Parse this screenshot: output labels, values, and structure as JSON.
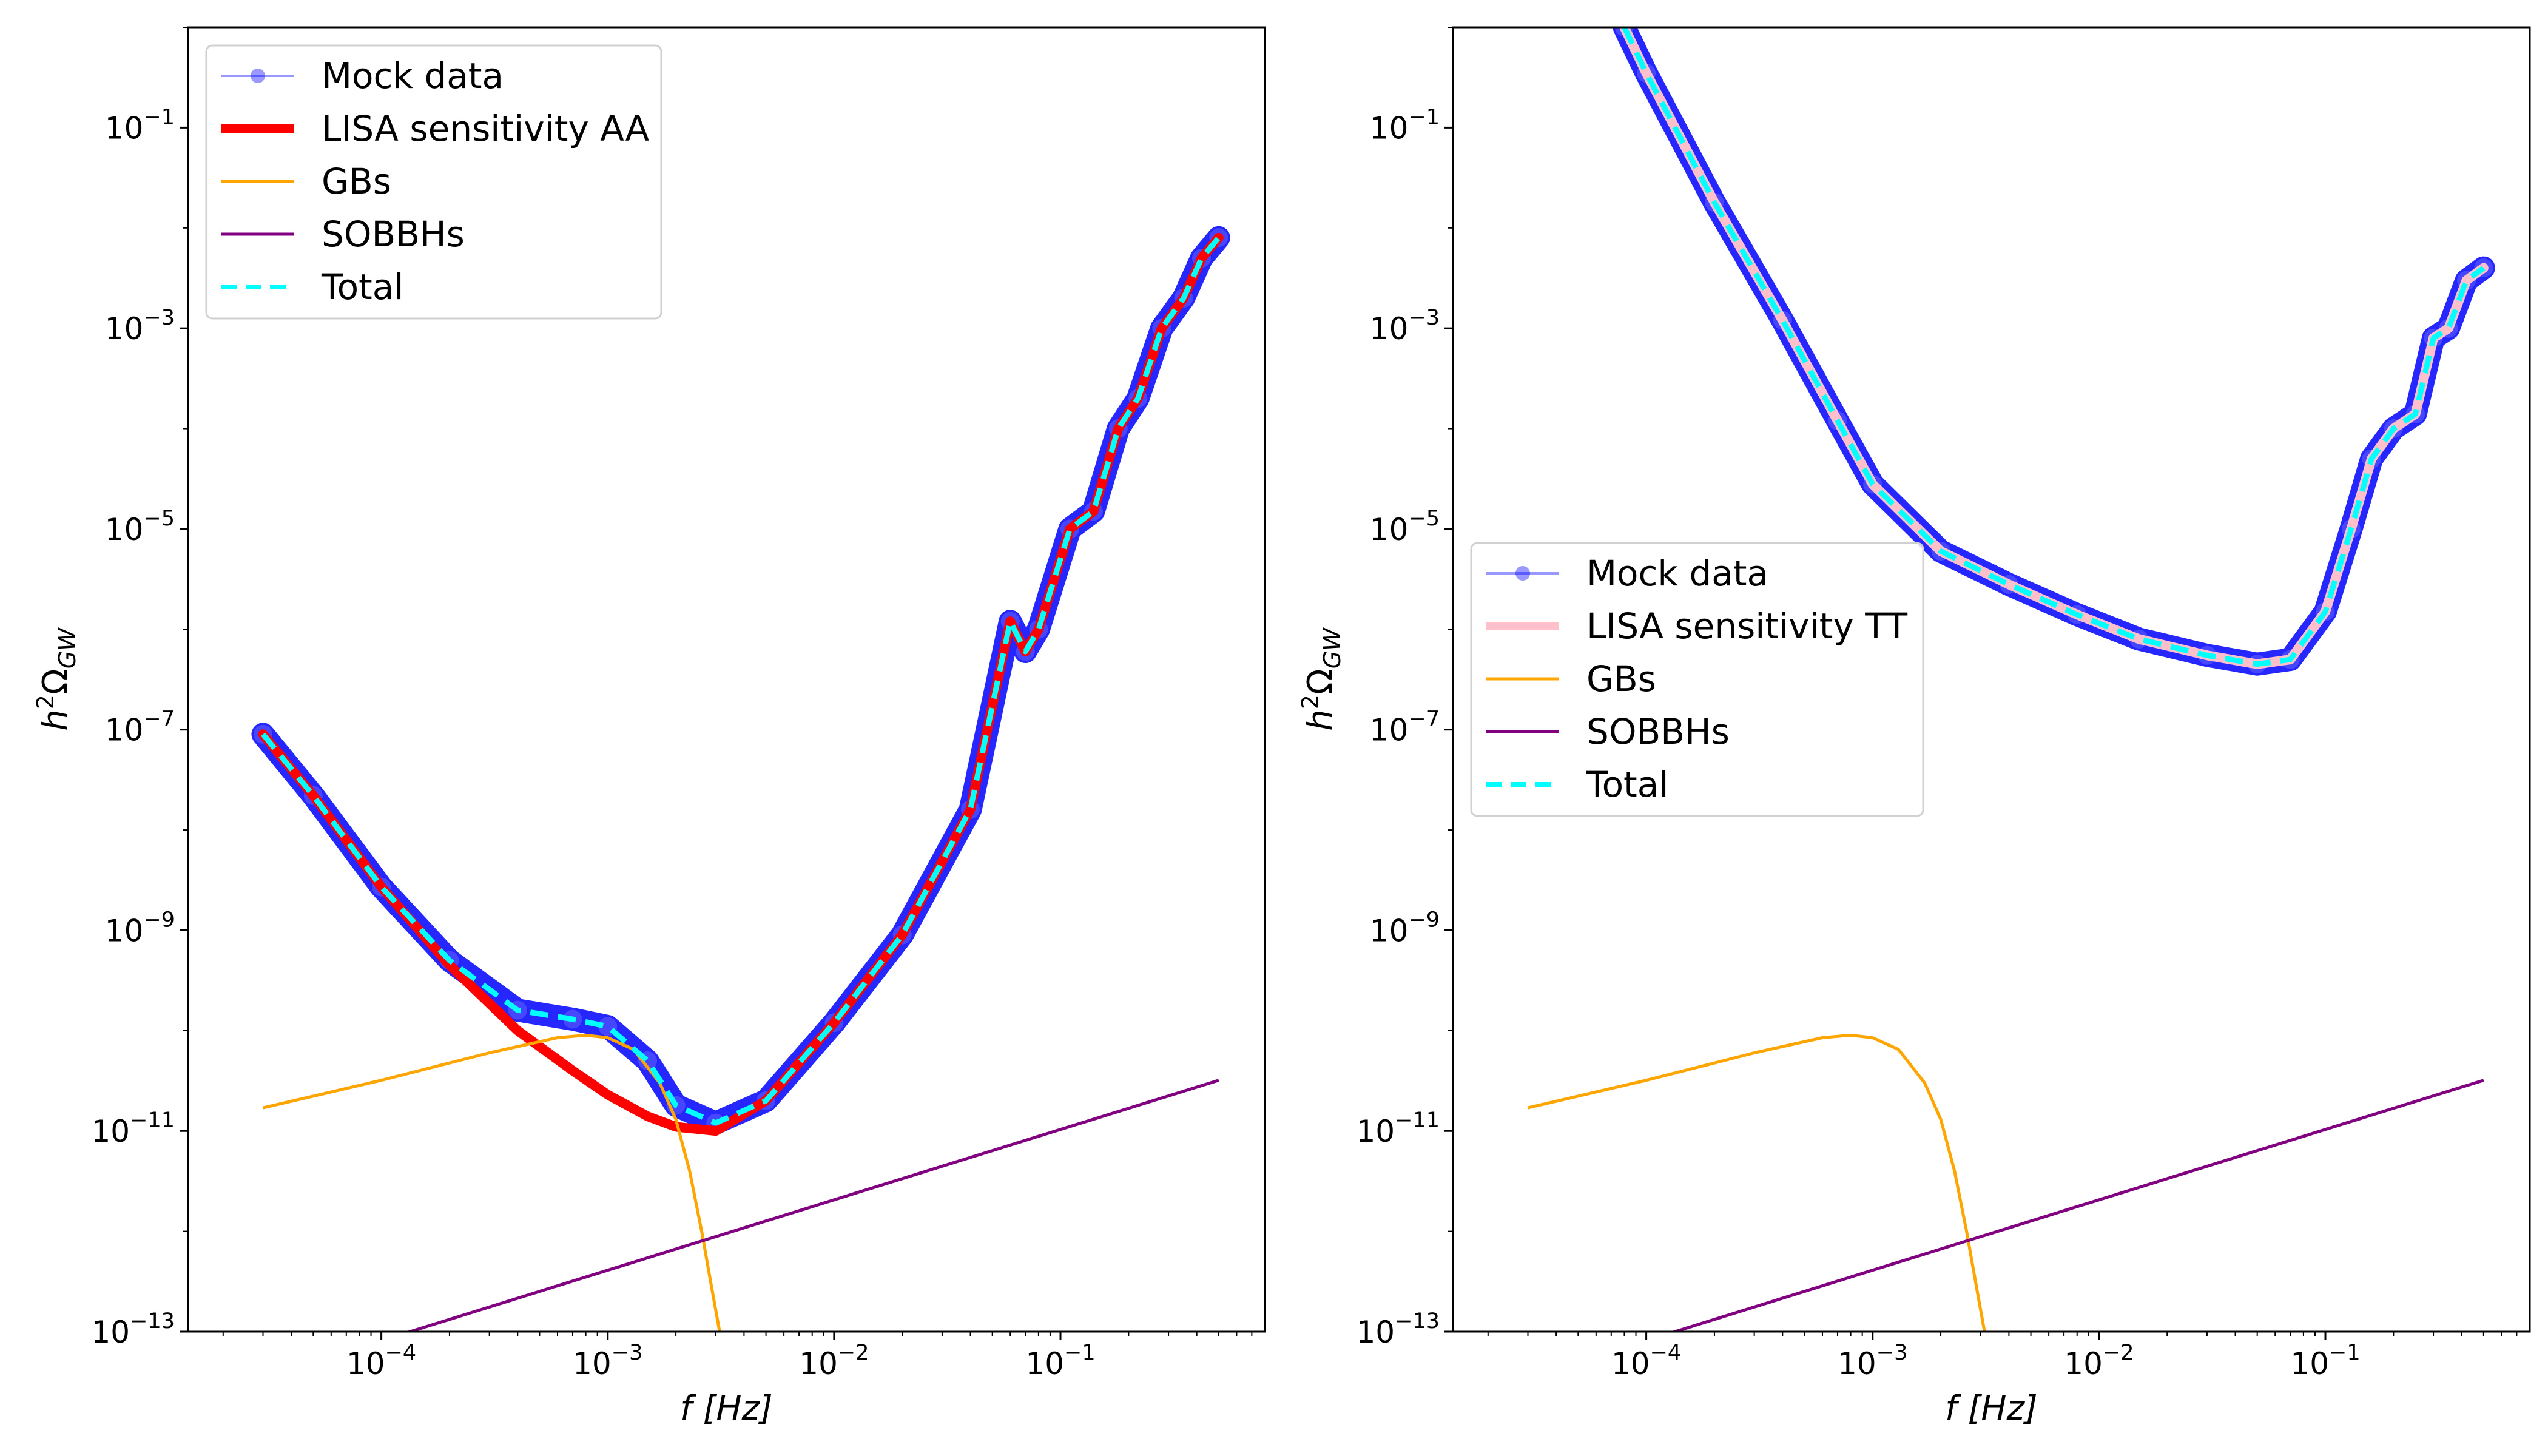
{
  "chart_data": [
    {
      "type": "line",
      "title": "",
      "xlabel_main": "f",
      "xlabel_unit": "[Hz]",
      "ylabel_base": "h",
      "ylabel_sup": "2",
      "ylabel_omega": "Ω",
      "ylabel_sub": "GW",
      "xscale": "log",
      "yscale": "log",
      "xlim": [
        1.4e-05,
        0.8
      ],
      "ylim": [
        1e-13,
        1
      ],
      "xticks": [
        {
          "base": "10",
          "exp": "−4",
          "value": 0.0001
        },
        {
          "base": "10",
          "exp": "−3",
          "value": 0.001
        },
        {
          "base": "10",
          "exp": "−2",
          "value": 0.01
        },
        {
          "base": "10",
          "exp": "−1",
          "value": 0.1
        }
      ],
      "yticks": [
        {
          "base": "10",
          "exp": "−13",
          "value": 1e-13
        },
        {
          "base": "10",
          "exp": "−11",
          "value": 1e-11
        },
        {
          "base": "10",
          "exp": "−9",
          "value": 1e-09
        },
        {
          "base": "10",
          "exp": "−7",
          "value": 1e-07
        },
        {
          "base": "10",
          "exp": "−5",
          "value": 1e-05
        },
        {
          "base": "10",
          "exp": "−3",
          "value": 0.001
        },
        {
          "base": "10",
          "exp": "−1",
          "value": 0.1
        }
      ],
      "legend_position": "upper-left",
      "series": [
        {
          "name": "Mock data",
          "role": "mock",
          "color": "#0000ff",
          "x": [
            3e-05,
            5e-05,
            0.0001,
            0.0002,
            0.0004,
            0.0007,
            0.001,
            0.0015,
            0.002,
            0.003,
            0.005,
            0.01,
            0.02,
            0.04,
            0.06,
            0.07,
            0.08,
            0.11,
            0.14,
            0.18,
            0.22,
            0.28,
            0.35,
            0.42,
            0.5
          ],
          "values": [
            9e-08,
            2.2e-08,
            2.7e-09,
            5e-10,
            1.6e-10,
            1.3e-10,
            1.1e-10,
            5e-11,
            1.8e-11,
            1.2e-11,
            2e-11,
            1.2e-10,
            9e-10,
            1.6e-08,
            1.2e-06,
            6e-07,
            1e-06,
            1e-05,
            1.5e-05,
            0.0001,
            0.0002,
            0.001,
            0.002,
            0.005,
            0.008
          ]
        },
        {
          "name": "LISA sensitivity AA",
          "role": "sensitivity",
          "color": "#ff0000",
          "x": [
            3e-05,
            5e-05,
            0.0001,
            0.0002,
            0.0004,
            0.0007,
            0.001,
            0.0015,
            0.002,
            0.003,
            0.005,
            0.01,
            0.02,
            0.04,
            0.06,
            0.07,
            0.08,
            0.11,
            0.14,
            0.18,
            0.22,
            0.28,
            0.35,
            0.42,
            0.5
          ],
          "values": [
            9e-08,
            2.2e-08,
            2.7e-09,
            4.5e-10,
            1e-10,
            4e-11,
            2.3e-11,
            1.4e-11,
            1.1e-11,
            1e-11,
            2e-11,
            1.2e-10,
            9e-10,
            1.6e-08,
            1.2e-06,
            6e-07,
            1e-06,
            1e-05,
            1.5e-05,
            0.0001,
            0.0002,
            0.001,
            0.002,
            0.005,
            0.008
          ]
        },
        {
          "name": "GBs",
          "role": "gbs",
          "color": "#ffa500",
          "x": [
            3e-05,
            0.0001,
            0.0003,
            0.0006,
            0.0008,
            0.001,
            0.0013,
            0.0017,
            0.002,
            0.0023,
            0.0026,
            0.0029,
            0.0033
          ],
          "values": [
            1.7e-11,
            3.2e-11,
            6e-11,
            8.5e-11,
            9e-11,
            8.5e-11,
            6.5e-11,
            3e-11,
            1.3e-11,
            4e-12,
            1e-12,
            2.5e-13,
            5e-14
          ]
        },
        {
          "name": "SOBBHs",
          "role": "sobbh",
          "color": "#800080",
          "x": [
            3e-05,
            0.5
          ],
          "values": [
            3.5e-14,
            3.2e-11
          ]
        },
        {
          "name": "Total",
          "role": "total",
          "color": "#00ffff",
          "x": [
            3e-05,
            5e-05,
            0.0001,
            0.0002,
            0.0004,
            0.0007,
            0.001,
            0.0015,
            0.002,
            0.003,
            0.005,
            0.01,
            0.02,
            0.04,
            0.06,
            0.07,
            0.08,
            0.11,
            0.14,
            0.18,
            0.22,
            0.28,
            0.35,
            0.42,
            0.5
          ],
          "values": [
            9e-08,
            2.2e-08,
            2.7e-09,
            5e-10,
            1.6e-10,
            1.3e-10,
            1.1e-10,
            5e-11,
            1.8e-11,
            1.2e-11,
            2e-11,
            1.2e-10,
            9e-10,
            1.6e-08,
            1.2e-06,
            6e-07,
            1e-06,
            1e-05,
            1.5e-05,
            0.0001,
            0.0002,
            0.001,
            0.002,
            0.005,
            0.008
          ]
        }
      ]
    },
    {
      "type": "line",
      "title": "",
      "xlabel_main": "f",
      "xlabel_unit": "[Hz]",
      "ylabel_base": "h",
      "ylabel_sup": "2",
      "ylabel_omega": "Ω",
      "ylabel_sub": "GW",
      "xscale": "log",
      "yscale": "log",
      "xlim": [
        1.4e-05,
        0.8
      ],
      "ylim": [
        1e-13,
        1
      ],
      "xticks": [
        {
          "base": "10",
          "exp": "−4",
          "value": 0.0001
        },
        {
          "base": "10",
          "exp": "−3",
          "value": 0.001
        },
        {
          "base": "10",
          "exp": "−2",
          "value": 0.01
        },
        {
          "base": "10",
          "exp": "−1",
          "value": 0.1
        }
      ],
      "yticks": [
        {
          "base": "10",
          "exp": "−13",
          "value": 1e-13
        },
        {
          "base": "10",
          "exp": "−11",
          "value": 1e-11
        },
        {
          "base": "10",
          "exp": "−9",
          "value": 1e-09
        },
        {
          "base": "10",
          "exp": "−7",
          "value": 1e-07
        },
        {
          "base": "10",
          "exp": "−5",
          "value": 1e-05
        },
        {
          "base": "10",
          "exp": "−3",
          "value": 0.001
        },
        {
          "base": "10",
          "exp": "−1",
          "value": 0.1
        }
      ],
      "legend_position": "center-left",
      "series": [
        {
          "name": "Mock data",
          "role": "mock",
          "color": "#0000ff",
          "x": [
            8e-05,
            0.0001,
            0.0002,
            0.0004,
            0.0007,
            0.001,
            0.002,
            0.004,
            0.008,
            0.015,
            0.03,
            0.05,
            0.07,
            0.1,
            0.13,
            0.16,
            0.2,
            0.25,
            0.3,
            0.35,
            0.42,
            0.5
          ],
          "values": [
            1,
            0.35,
            0.018,
            0.0012,
            0.00012,
            2.8e-05,
            6e-06,
            2.8e-06,
            1.4e-06,
            8e-07,
            5.5e-07,
            4.5e-07,
            5e-07,
            1.5e-06,
            1e-05,
            5e-05,
            0.0001,
            0.00014,
            0.0008,
            0.001,
            0.003,
            0.004
          ]
        },
        {
          "name": "LISA sensitivity TT",
          "role": "sensitivity",
          "color": "#ffc0cb",
          "x": [
            8e-05,
            0.0001,
            0.0002,
            0.0004,
            0.0007,
            0.001,
            0.002,
            0.004,
            0.008,
            0.015,
            0.03,
            0.05,
            0.07,
            0.1,
            0.13,
            0.16,
            0.2,
            0.25,
            0.3,
            0.35,
            0.42,
            0.5
          ],
          "values": [
            1,
            0.35,
            0.018,
            0.0012,
            0.00012,
            2.8e-05,
            6e-06,
            2.8e-06,
            1.4e-06,
            8e-07,
            5.5e-07,
            4.5e-07,
            5e-07,
            1.5e-06,
            1e-05,
            5e-05,
            0.0001,
            0.00014,
            0.0008,
            0.001,
            0.003,
            0.004
          ]
        },
        {
          "name": "GBs",
          "role": "gbs",
          "color": "#ffa500",
          "x": [
            3e-05,
            0.0001,
            0.0003,
            0.0006,
            0.0008,
            0.001,
            0.0013,
            0.0017,
            0.002,
            0.0023,
            0.0026,
            0.0029,
            0.0033
          ],
          "values": [
            1.7e-11,
            3.2e-11,
            6e-11,
            8.5e-11,
            9e-11,
            8.5e-11,
            6.5e-11,
            3e-11,
            1.3e-11,
            4e-12,
            1e-12,
            2.5e-13,
            5e-14
          ]
        },
        {
          "name": "SOBBHs",
          "role": "sobbh",
          "color": "#800080",
          "x": [
            3e-05,
            0.5
          ],
          "values": [
            3.5e-14,
            3.2e-11
          ]
        },
        {
          "name": "Total",
          "role": "total",
          "color": "#00ffff",
          "x": [
            8e-05,
            0.0001,
            0.0002,
            0.0004,
            0.0007,
            0.001,
            0.002,
            0.004,
            0.008,
            0.015,
            0.03,
            0.05,
            0.07,
            0.1,
            0.13,
            0.16,
            0.2,
            0.25,
            0.3,
            0.35,
            0.42,
            0.5
          ],
          "values": [
            1,
            0.35,
            0.018,
            0.0012,
            0.00012,
            2.8e-05,
            6e-06,
            2.8e-06,
            1.4e-06,
            8e-07,
            5.5e-07,
            4.5e-07,
            5e-07,
            1.5e-06,
            1e-05,
            5e-05,
            0.0001,
            0.00014,
            0.0008,
            0.001,
            0.003,
            0.004
          ]
        }
      ]
    }
  ]
}
